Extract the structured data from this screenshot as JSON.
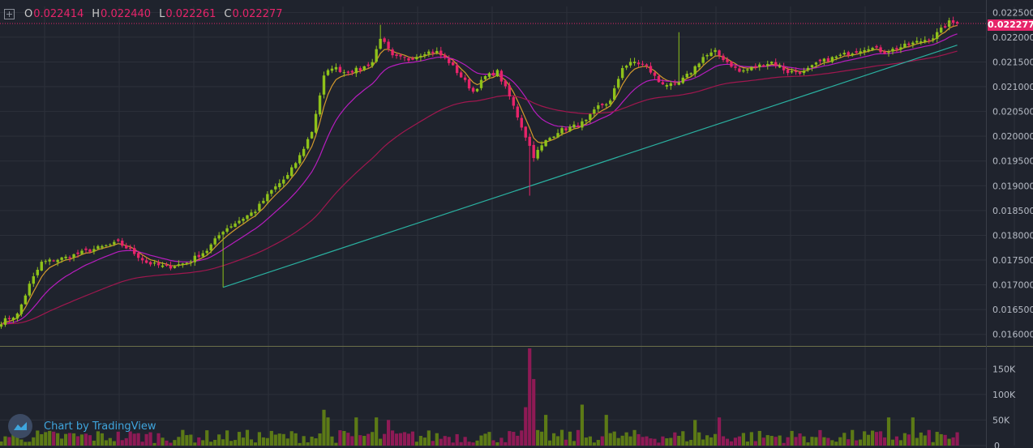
{
  "header": {
    "ohlc": [
      {
        "label": "O",
        "value": "0.022414"
      },
      {
        "label": "H",
        "value": "0.022440"
      },
      {
        "label": "L",
        "value": "0.022261"
      },
      {
        "label": "C",
        "value": "0.022277"
      }
    ]
  },
  "last_price": "0.022277",
  "watermark": "Chart by TradingView",
  "colors": {
    "background": "#1f232d",
    "grid": "#2c303a",
    "up": "#8ec21a",
    "down": "#e6246a",
    "ema_fast": "#d39a2c",
    "ema_mid": "#b71dbf",
    "ema_slow": "#a0174f",
    "trendline": "#2ab0a0",
    "volume_up": "#5c7a16",
    "volume_down": "#8e1a55"
  },
  "chart_data": {
    "type": "candlestick",
    "price_axis": {
      "labels": [
        "0.022500",
        "0.022000",
        "0.021500",
        "0.021000",
        "0.020500",
        "0.020000",
        "0.019500",
        "0.019000",
        "0.018500",
        "0.018000",
        "0.017500",
        "0.017000",
        "0.016500",
        "0.016000"
      ],
      "range": [
        0.01575,
        0.02262
      ]
    },
    "volume_axis": {
      "labels": [
        "150K",
        "100K",
        "50K",
        "0"
      ],
      "range": [
        0,
        190000
      ]
    },
    "close_anchors": [
      [
        0,
        0.01625
      ],
      [
        4,
        0.0164
      ],
      [
        7,
        0.017
      ],
      [
        10,
        0.01745
      ],
      [
        16,
        0.01755
      ],
      [
        22,
        0.0177
      ],
      [
        29,
        0.01785
      ],
      [
        32,
        0.0177
      ],
      [
        36,
        0.01745
      ],
      [
        41,
        0.01735
      ],
      [
        46,
        0.01745
      ],
      [
        51,
        0.0177
      ],
      [
        55,
        0.0181
      ],
      [
        59,
        0.0183
      ],
      [
        63,
        0.0185
      ],
      [
        67,
        0.0189
      ],
      [
        71,
        0.0192
      ],
      [
        74,
        0.0196
      ],
      [
        77,
        0.0201
      ],
      [
        80,
        0.0212
      ],
      [
        82,
        0.0214
      ],
      [
        85,
        0.0213
      ],
      [
        89,
        0.02135
      ],
      [
        92,
        0.0215
      ],
      [
        94,
        0.022
      ],
      [
        97,
        0.0216
      ],
      [
        101,
        0.02155
      ],
      [
        105,
        0.0217
      ],
      [
        108,
        0.0217
      ],
      [
        111,
        0.0215
      ],
      [
        114,
        0.0212
      ],
      [
        117,
        0.0209
      ],
      [
        120,
        0.0212
      ],
      [
        123,
        0.0213
      ],
      [
        126,
        0.0208
      ],
      [
        129,
        0.0202
      ],
      [
        132,
        0.0196
      ],
      [
        135,
        0.0199
      ],
      [
        138,
        0.0201
      ],
      [
        142,
        0.0202
      ],
      [
        145,
        0.0203
      ],
      [
        148,
        0.0206
      ],
      [
        151,
        0.0207
      ],
      [
        154,
        0.0214
      ],
      [
        157,
        0.0215
      ],
      [
        160,
        0.0214
      ],
      [
        163,
        0.0211
      ],
      [
        167,
        0.021
      ],
      [
        171,
        0.0213
      ],
      [
        174,
        0.0216
      ],
      [
        177,
        0.0217
      ],
      [
        180,
        0.0215
      ],
      [
        183,
        0.0213
      ],
      [
        187,
        0.0214
      ],
      [
        191,
        0.0215
      ],
      [
        195,
        0.0213
      ],
      [
        199,
        0.0213
      ],
      [
        203,
        0.0215
      ],
      [
        207,
        0.0216
      ],
      [
        211,
        0.0217
      ],
      [
        215,
        0.0218
      ],
      [
        219,
        0.0217
      ],
      [
        223,
        0.0218
      ],
      [
        227,
        0.0219
      ],
      [
        231,
        0.022
      ],
      [
        235,
        0.0223
      ],
      [
        237,
        0.02228
      ]
    ],
    "volume_spikes": [
      [
        80,
        70000
      ],
      [
        81,
        55000
      ],
      [
        88,
        55000
      ],
      [
        93,
        55000
      ],
      [
        96,
        50000
      ],
      [
        130,
        75000
      ],
      [
        131,
        190000
      ],
      [
        132,
        130000
      ],
      [
        135,
        60000
      ],
      [
        144,
        80000
      ],
      [
        150,
        60000
      ],
      [
        172,
        50000
      ],
      [
        178,
        55000
      ],
      [
        220,
        55000
      ],
      [
        226,
        55000
      ]
    ],
    "moving_averages": [
      {
        "period": 5,
        "color": "ema_fast"
      },
      {
        "period": 15,
        "color": "ema_mid"
      },
      {
        "period": 55,
        "color": "ema_slow"
      }
    ],
    "trendline": {
      "from": [
        55,
        0.01695
      ],
      "to": [
        237,
        0.02184
      ]
    },
    "current_price": 0.022277,
    "grid": true
  }
}
